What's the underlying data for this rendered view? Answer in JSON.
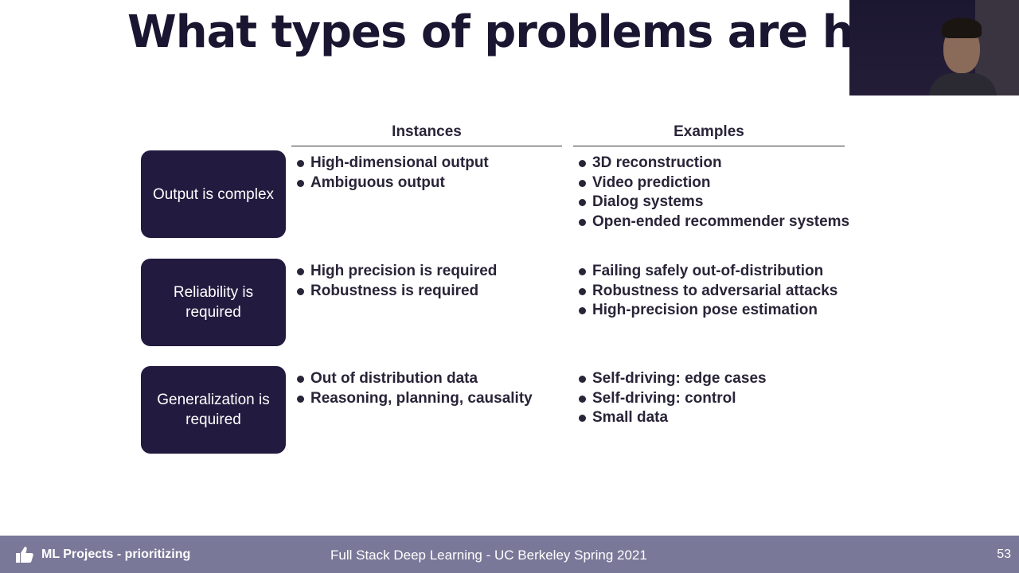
{
  "slide": {
    "title": "What types of problems are hard"
  },
  "columns": {
    "instances_header": "Instances",
    "examples_header": "Examples"
  },
  "rows": [
    {
      "category": "Output is complex",
      "instances": [
        "High-dimensional output",
        "Ambiguous output"
      ],
      "examples": [
        "3D reconstruction",
        "Video prediction",
        "Dialog systems",
        "Open-ended recommender systems"
      ]
    },
    {
      "category": "Reliability is required",
      "instances": [
        "High precision is required",
        "Robustness is required"
      ],
      "examples": [
        "Failing safely out-of-distribution",
        "Robustness to adversarial attacks",
        "High-precision pose estimation"
      ]
    },
    {
      "category": "Generalization is required",
      "instances": [
        "Out of distribution data",
        "Reasoning, planning, causality"
      ],
      "examples": [
        "Self-driving: edge cases",
        "Self-driving: control",
        "Small data"
      ]
    }
  ],
  "footer": {
    "section": "ML Projects - prioritizing",
    "course": "Full Stack Deep Learning - UC Berkeley Spring 2021",
    "page_number": "53",
    "icon": "thumbs-up-icon"
  },
  "colors": {
    "box_fill": "#231a3f",
    "footer_bg": "#7a7898",
    "title_text": "#1a1530"
  }
}
